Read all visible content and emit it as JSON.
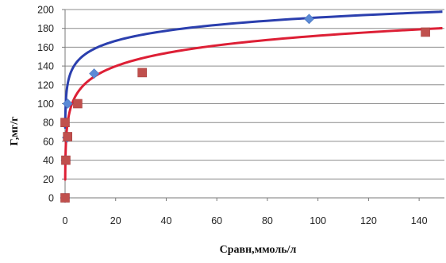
{
  "chart_data": {
    "type": "scatter",
    "xlabel": "Сравн,ммоль/л",
    "ylabel": "Г,мг/г",
    "xlim": [
      0,
      150
    ],
    "ylim": [
      0,
      200
    ],
    "x_ticks": [
      0,
      20,
      40,
      60,
      80,
      100,
      120,
      140
    ],
    "y_ticks": [
      0,
      20,
      40,
      60,
      80,
      100,
      120,
      140,
      160,
      180,
      200
    ],
    "grid": "horizontal",
    "series": [
      {
        "marker": "diamond",
        "color": "#5b8ad6",
        "curve_color": "#2b3fae",
        "points": [
          [
            0,
            0
          ],
          [
            0.3,
            40
          ],
          [
            0.8,
            64
          ],
          [
            1,
            100
          ],
          [
            11.5,
            132
          ],
          [
            96.5,
            190
          ]
        ],
        "trend": {
          "type": "logarithmic",
          "a": 120.6,
          "b": 15.4
        }
      },
      {
        "marker": "square",
        "color": "#c0504d",
        "curve_color": "#dd1f35",
        "points": [
          [
            0,
            0
          ],
          [
            0.3,
            40
          ],
          [
            0,
            80
          ],
          [
            1,
            65
          ],
          [
            5,
            100
          ],
          [
            30.5,
            133
          ],
          [
            142.5,
            176
          ]
        ],
        "trend": {
          "type": "logarithmic",
          "a": 79.6,
          "b": 20.1
        }
      }
    ]
  }
}
